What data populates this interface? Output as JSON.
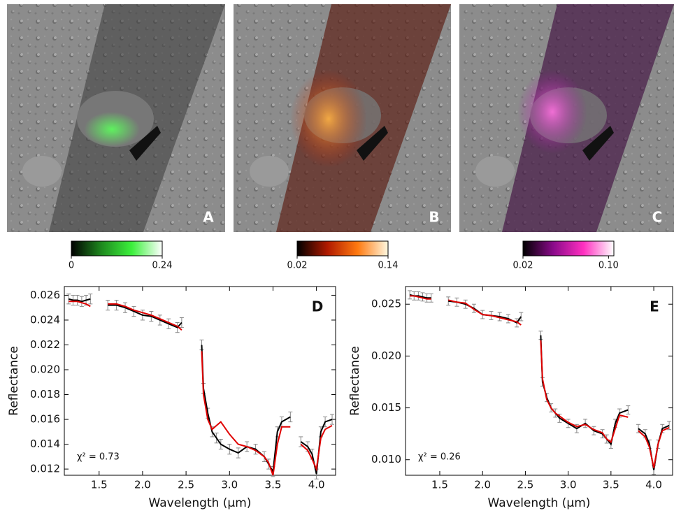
{
  "chart_data": [
    {
      "type": "colorbar",
      "panel_label": "A",
      "colors": [
        "#000000",
        "#1f8a1f",
        "#3cf03c",
        "#ffffff"
      ],
      "xlim": [
        0,
        0.24
      ],
      "xticks": [
        0,
        0.24
      ]
    },
    {
      "type": "colorbar",
      "panel_label": "B",
      "colors": [
        "#000000",
        "#b01a00",
        "#ff7a10",
        "#fff8e0"
      ],
      "xlim": [
        0.02,
        0.14
      ],
      "xticks": [
        0.02,
        0.14
      ]
    },
    {
      "type": "colorbar",
      "panel_label": "C",
      "colors": [
        "#000000",
        "#8a0a8a",
        "#ff30c0",
        "#ffffff"
      ],
      "xlim": [
        0.02,
        0.105
      ],
      "xticks": [
        0.02,
        {
          "value": 0.1,
          "label": "0.10"
        }
      ]
    },
    {
      "type": "line",
      "panel_label": "D",
      "annotation": "χ² = 0.73",
      "xlabel": "Wavelength (μm)",
      "ylabel": "Reflectance",
      "x": [
        1.15,
        1.2,
        1.25,
        1.3,
        1.35,
        1.4,
        1.5,
        1.6,
        1.7,
        1.8,
        1.9,
        2.0,
        2.1,
        2.2,
        2.3,
        2.4,
        2.45,
        2.55,
        2.68,
        2.7,
        2.75,
        2.8,
        2.85,
        2.9,
        3.0,
        3.1,
        3.2,
        3.3,
        3.4,
        3.45,
        3.5,
        3.55,
        3.6,
        3.7,
        3.77,
        3.82,
        3.9,
        3.95,
        4.0,
        4.05,
        4.1,
        4.18
      ],
      "series": [
        {
          "color": "#000000",
          "error": 0.0004,
          "values": [
            0.0257,
            0.0256,
            0.0256,
            0.0255,
            0.0256,
            0.0257,
            null,
            0.0252,
            0.0252,
            0.025,
            0.0247,
            0.0244,
            0.0243,
            0.024,
            0.0237,
            0.0234,
            0.0238,
            null,
            0.022,
            0.0185,
            0.0165,
            0.015,
            0.0145,
            0.014,
            0.0136,
            0.0133,
            0.0138,
            0.0136,
            0.013,
            0.0124,
            0.0118,
            0.015,
            0.0158,
            0.0162,
            null,
            0.0142,
            0.0138,
            0.0132,
            0.0116,
            0.015,
            0.0158,
            0.016
          ]
        },
        {
          "color": "#e00000",
          "values": [
            0.0255,
            0.0255,
            0.0255,
            0.0254,
            0.0253,
            0.0251,
            null,
            0.0253,
            0.0253,
            0.0251,
            0.0248,
            0.0246,
            0.0244,
            0.0241,
            0.0238,
            0.0235,
            0.0232,
            null,
            0.0215,
            0.018,
            0.016,
            0.0152,
            0.0155,
            0.0158,
            0.0148,
            0.014,
            0.0138,
            0.0135,
            0.013,
            0.0125,
            0.0115,
            0.014,
            0.0154,
            0.0154,
            null,
            0.014,
            0.0135,
            0.0128,
            0.012,
            0.0145,
            0.0152,
            0.0155
          ]
        }
      ],
      "xlim": [
        1.1,
        4.22
      ],
      "ylim": [
        0.0115,
        0.0267
      ],
      "xticks": [
        1.5,
        {
          "value": 2,
          "label": "2.0"
        },
        2.5,
        {
          "value": 3,
          "label": "3.0"
        },
        3.5,
        {
          "value": 4,
          "label": "4.0"
        }
      ],
      "yticks": [
        0.012,
        0.014,
        0.016,
        0.018,
        {
          "value": 0.02,
          "label": "0.020"
        },
        0.022,
        0.024,
        0.026
      ]
    },
    {
      "type": "line",
      "panel_label": "E",
      "annotation": "χ² = 0.26",
      "xlabel": "Wavelength (μm)",
      "ylabel": "Reflectance",
      "x": [
        1.15,
        1.2,
        1.25,
        1.3,
        1.35,
        1.4,
        1.5,
        1.6,
        1.7,
        1.8,
        1.9,
        2.0,
        2.1,
        2.2,
        2.3,
        2.4,
        2.45,
        2.55,
        2.68,
        2.7,
        2.75,
        2.8,
        2.85,
        2.9,
        3.0,
        3.1,
        3.2,
        3.3,
        3.4,
        3.45,
        3.5,
        3.55,
        3.6,
        3.7,
        3.77,
        3.82,
        3.9,
        3.95,
        4.0,
        4.05,
        4.1,
        4.18
      ],
      "series": [
        {
          "color": "#000000",
          "error": 0.0004,
          "values": [
            0.0259,
            0.0258,
            0.0258,
            0.0257,
            0.0256,
            0.0256,
            null,
            0.0253,
            0.0252,
            0.025,
            0.0246,
            0.024,
            0.0239,
            0.0238,
            0.0236,
            0.0232,
            0.0238,
            null,
            0.022,
            0.0175,
            0.016,
            0.015,
            0.0145,
            0.014,
            0.0135,
            0.013,
            0.0135,
            0.0128,
            0.0125,
            0.012,
            0.0115,
            0.0135,
            0.0145,
            0.0148,
            null,
            0.013,
            0.0125,
            0.0115,
            0.009,
            0.0115,
            0.013,
            0.0133
          ]
        },
        {
          "color": "#e00000",
          "values": [
            0.0258,
            0.0258,
            0.0257,
            0.0256,
            0.0255,
            0.0255,
            null,
            0.0254,
            0.0252,
            0.0251,
            0.0245,
            0.024,
            0.0239,
            0.0237,
            0.0235,
            0.0233,
            0.023,
            null,
            0.0215,
            0.0178,
            0.0158,
            0.015,
            0.0145,
            0.0142,
            0.0136,
            0.0132,
            0.0134,
            0.0129,
            0.0126,
            0.012,
            0.0117,
            0.013,
            0.0143,
            0.0141,
            null,
            0.0128,
            0.0122,
            0.0112,
            0.0092,
            0.0115,
            0.0128,
            0.0131
          ]
        }
      ],
      "xlim": [
        1.1,
        4.22
      ],
      "ylim": [
        0.0085,
        0.0267
      ],
      "xticks": [
        1.5,
        {
          "value": 2,
          "label": "2.0"
        },
        2.5,
        {
          "value": 3,
          "label": "3.0"
        },
        3.5,
        {
          "value": 4,
          "label": "4.0"
        }
      ],
      "yticks": [
        {
          "value": 0.01,
          "label": "0.010"
        },
        0.015,
        {
          "value": 0.02,
          "label": "0.020"
        },
        0.025
      ]
    }
  ]
}
